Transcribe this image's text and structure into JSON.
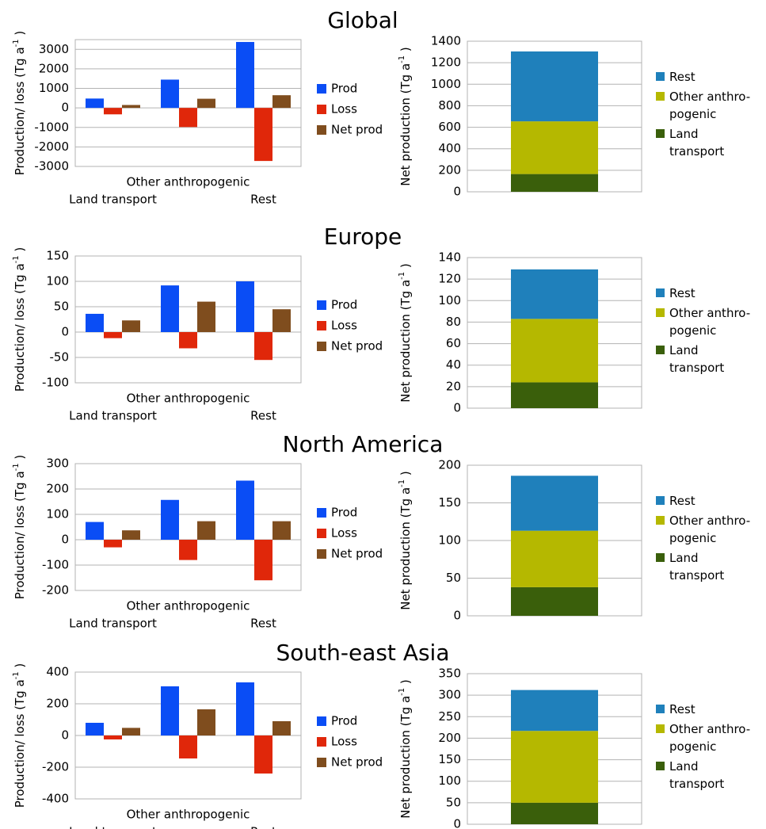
{
  "chart_data": [
    {
      "type": "bar",
      "title": "Global",
      "ylabel": [
        "Production/ loss (Tg a",
        "-1",
        " )"
      ],
      "categories": [
        "Land transport",
        "Other anthropogenic",
        "Rest"
      ],
      "series": [
        {
          "name": "Prod",
          "color": "#0a4df5",
          "values": [
            480,
            1450,
            3380
          ]
        },
        {
          "name": "Loss",
          "color": "#e0270a",
          "values": [
            -330,
            -980,
            -2720
          ]
        },
        {
          "name": "Net prod",
          "color": "#7f4d1e",
          "values": [
            150,
            470,
            650
          ]
        }
      ],
      "ylim": [
        -3000,
        3500
      ],
      "yticks": [
        -3000,
        -2000,
        -1000,
        0,
        1000,
        2000,
        3000
      ],
      "grid": true
    },
    {
      "type": "stacked_bar",
      "ylabel": [
        "Net production (Tg a",
        "-1",
        " )"
      ],
      "categories": [
        null
      ],
      "series": [
        {
          "name": "Land transport",
          "color": "#3a5f0b",
          "values": [
            165
          ]
        },
        {
          "name": "Other anthro-pogenic",
          "color": "#b5b800",
          "values": [
            490
          ]
        },
        {
          "name": "Rest",
          "color": "#1f80bb",
          "values": [
            650
          ]
        }
      ],
      "ylim": [
        0,
        1400
      ],
      "yticks": [
        0,
        200,
        400,
        600,
        800,
        1000,
        1200,
        1400
      ],
      "grid": true
    },
    {
      "type": "bar",
      "title": "Europe",
      "ylabel": [
        "Production/ loss (Tg a",
        "-1",
        " )"
      ],
      "categories": [
        "Land transport",
        "Other anthropogenic",
        "Rest"
      ],
      "series": [
        {
          "name": "Prod",
          "color": "#0a4df5",
          "values": [
            36,
            92,
            100
          ]
        },
        {
          "name": "Loss",
          "color": "#e0270a",
          "values": [
            -12,
            -32,
            -55
          ]
        },
        {
          "name": "Net prod",
          "color": "#7f4d1e",
          "values": [
            23,
            60,
            45
          ]
        }
      ],
      "ylim": [
        -100,
        150
      ],
      "yticks": [
        -100,
        -50,
        0,
        50,
        100,
        150
      ],
      "grid": true
    },
    {
      "type": "stacked_bar",
      "ylabel": [
        "Net production (Tg a",
        "-1",
        " )"
      ],
      "categories": [
        null
      ],
      "series": [
        {
          "name": "Land transport",
          "color": "#3a5f0b",
          "values": [
            24
          ]
        },
        {
          "name": "Other anthro-pogenic",
          "color": "#b5b800",
          "values": [
            59
          ]
        },
        {
          "name": "Rest",
          "color": "#1f80bb",
          "values": [
            46
          ]
        }
      ],
      "ylim": [
        0,
        140
      ],
      "yticks": [
        0,
        20,
        40,
        60,
        80,
        100,
        120,
        140
      ],
      "grid": true
    },
    {
      "type": "bar",
      "title": "North America",
      "ylabel": [
        "Production/ loss (Tg a",
        "-1",
        " )"
      ],
      "categories": [
        "Land transport",
        "Other anthropogenic",
        "Rest"
      ],
      "series": [
        {
          "name": "Prod",
          "color": "#0a4df5",
          "values": [
            70,
            157,
            233
          ]
        },
        {
          "name": "Loss",
          "color": "#e0270a",
          "values": [
            -30,
            -80,
            -160
          ]
        },
        {
          "name": "Net prod",
          "color": "#7f4d1e",
          "values": [
            37,
            73,
            73
          ]
        }
      ],
      "ylim": [
        -200,
        300
      ],
      "yticks": [
        -200,
        -100,
        0,
        100,
        200,
        300
      ],
      "grid": true
    },
    {
      "type": "stacked_bar",
      "ylabel": [
        "Net production (Tg a",
        "-1",
        " )"
      ],
      "categories": [
        null
      ],
      "series": [
        {
          "name": "Land transport",
          "color": "#3a5f0b",
          "values": [
            38
          ]
        },
        {
          "name": "Other anthro-pogenic",
          "color": "#b5b800",
          "values": [
            75
          ]
        },
        {
          "name": "Rest",
          "color": "#1f80bb",
          "values": [
            73
          ]
        }
      ],
      "ylim": [
        0,
        200
      ],
      "yticks": [
        0,
        50,
        100,
        150,
        200
      ],
      "grid": true
    },
    {
      "type": "bar",
      "title": "South-east Asia",
      "ylabel": [
        "Production/ loss (Tg a",
        "-1",
        " )"
      ],
      "categories": [
        "Land transport",
        "Other anthropogenic",
        "Rest"
      ],
      "series": [
        {
          "name": "Prod",
          "color": "#0a4df5",
          "values": [
            80,
            310,
            335
          ]
        },
        {
          "name": "Loss",
          "color": "#e0270a",
          "values": [
            -25,
            -145,
            -240
          ]
        },
        {
          "name": "Net prod",
          "color": "#7f4d1e",
          "values": [
            48,
            165,
            90
          ]
        }
      ],
      "ylim": [
        -400,
        400
      ],
      "yticks": [
        -400,
        -200,
        0,
        200,
        400
      ],
      "grid": true
    },
    {
      "type": "stacked_bar",
      "ylabel": [
        "Net production (Tg a",
        "-1",
        " )"
      ],
      "categories": [
        null
      ],
      "series": [
        {
          "name": "Land transport",
          "color": "#3a5f0b",
          "values": [
            50
          ]
        },
        {
          "name": "Other anthro-pogenic",
          "color": "#b5b800",
          "values": [
            167
          ]
        },
        {
          "name": "Rest",
          "color": "#1f80bb",
          "values": [
            95
          ]
        }
      ],
      "ylim": [
        0,
        350
      ],
      "yticks": [
        0,
        50,
        100,
        150,
        200,
        250,
        300,
        350
      ],
      "grid": true
    }
  ]
}
